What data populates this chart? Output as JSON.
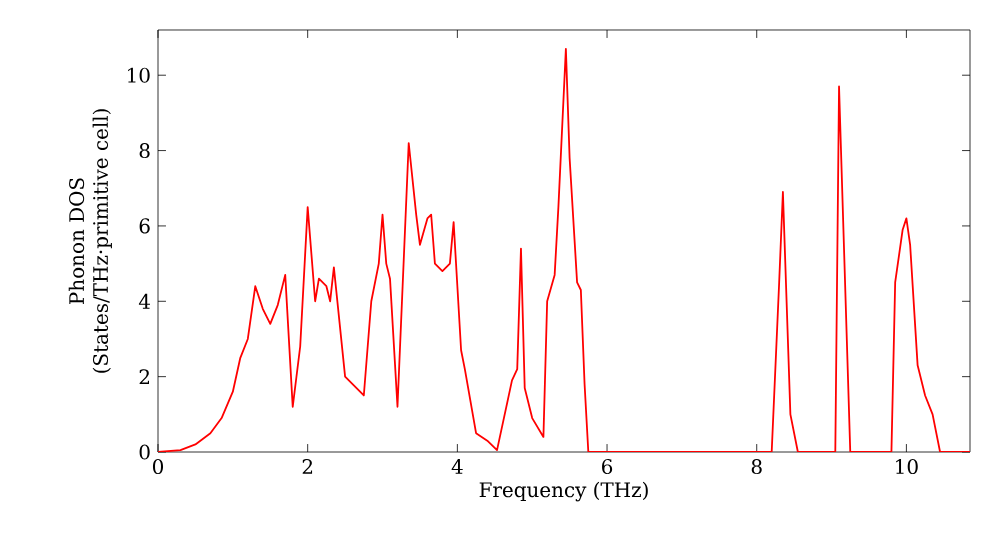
{
  "chart_data": {
    "type": "line",
    "xlabel": "Frequency (THz)",
    "ylabel": "Phonon DOS\n(States/THz·primitive cell)",
    "xlim": [
      0,
      10.85
    ],
    "ylim": [
      0,
      11.2
    ],
    "xticks": [
      0,
      2,
      4,
      6,
      8,
      10
    ],
    "yticks": [
      0,
      2,
      4,
      6,
      8,
      10
    ],
    "grid": false,
    "series": [
      {
        "color": "#ff0000",
        "x": [
          0,
          0.3,
          0.5,
          0.7,
          0.85,
          1.0,
          1.1,
          1.2,
          1.3,
          1.4,
          1.5,
          1.6,
          1.7,
          1.8,
          1.9,
          2.0,
          2.1,
          2.15,
          2.25,
          2.3,
          2.35,
          2.5,
          2.6,
          2.7,
          2.75,
          2.85,
          2.95,
          3.0,
          3.05,
          3.1,
          3.2,
          3.35,
          3.45,
          3.5,
          3.6,
          3.65,
          3.7,
          3.8,
          3.9,
          3.95,
          4.05,
          4.1,
          4.25,
          4.4,
          4.53,
          4.73,
          4.8,
          4.85,
          4.9,
          5.0,
          5.15,
          5.2,
          5.3,
          5.35,
          5.45,
          5.5,
          5.6,
          5.65,
          5.7,
          5.75,
          8.2,
          8.3,
          8.35,
          8.45,
          8.55,
          9.05,
          9.1,
          9.25,
          9.8,
          9.85,
          9.95,
          10.0,
          10.05,
          10.15,
          10.25,
          10.35,
          10.45,
          10.85
        ],
        "values": [
          0,
          0.05,
          0.2,
          0.5,
          0.9,
          1.6,
          2.5,
          3.0,
          4.4,
          3.8,
          3.4,
          3.9,
          4.7,
          1.2,
          2.8,
          6.5,
          4.0,
          4.6,
          4.4,
          4.0,
          4.9,
          2.0,
          1.8,
          1.6,
          1.5,
          4.0,
          5.0,
          6.3,
          5.0,
          4.6,
          1.2,
          8.2,
          6.3,
          5.5,
          6.2,
          6.3,
          5.0,
          4.8,
          5.0,
          6.1,
          2.7,
          2.2,
          0.5,
          0.3,
          0.05,
          1.9,
          2.2,
          5.4,
          1.7,
          0.9,
          0.4,
          4.0,
          4.7,
          6.5,
          10.7,
          7.8,
          4.5,
          4.3,
          1.8,
          0,
          0,
          4.5,
          6.9,
          1.0,
          0,
          0,
          9.7,
          0,
          0,
          4.5,
          5.9,
          6.2,
          5.5,
          2.3,
          1.5,
          1.0,
          0,
          0
        ]
      }
    ]
  }
}
